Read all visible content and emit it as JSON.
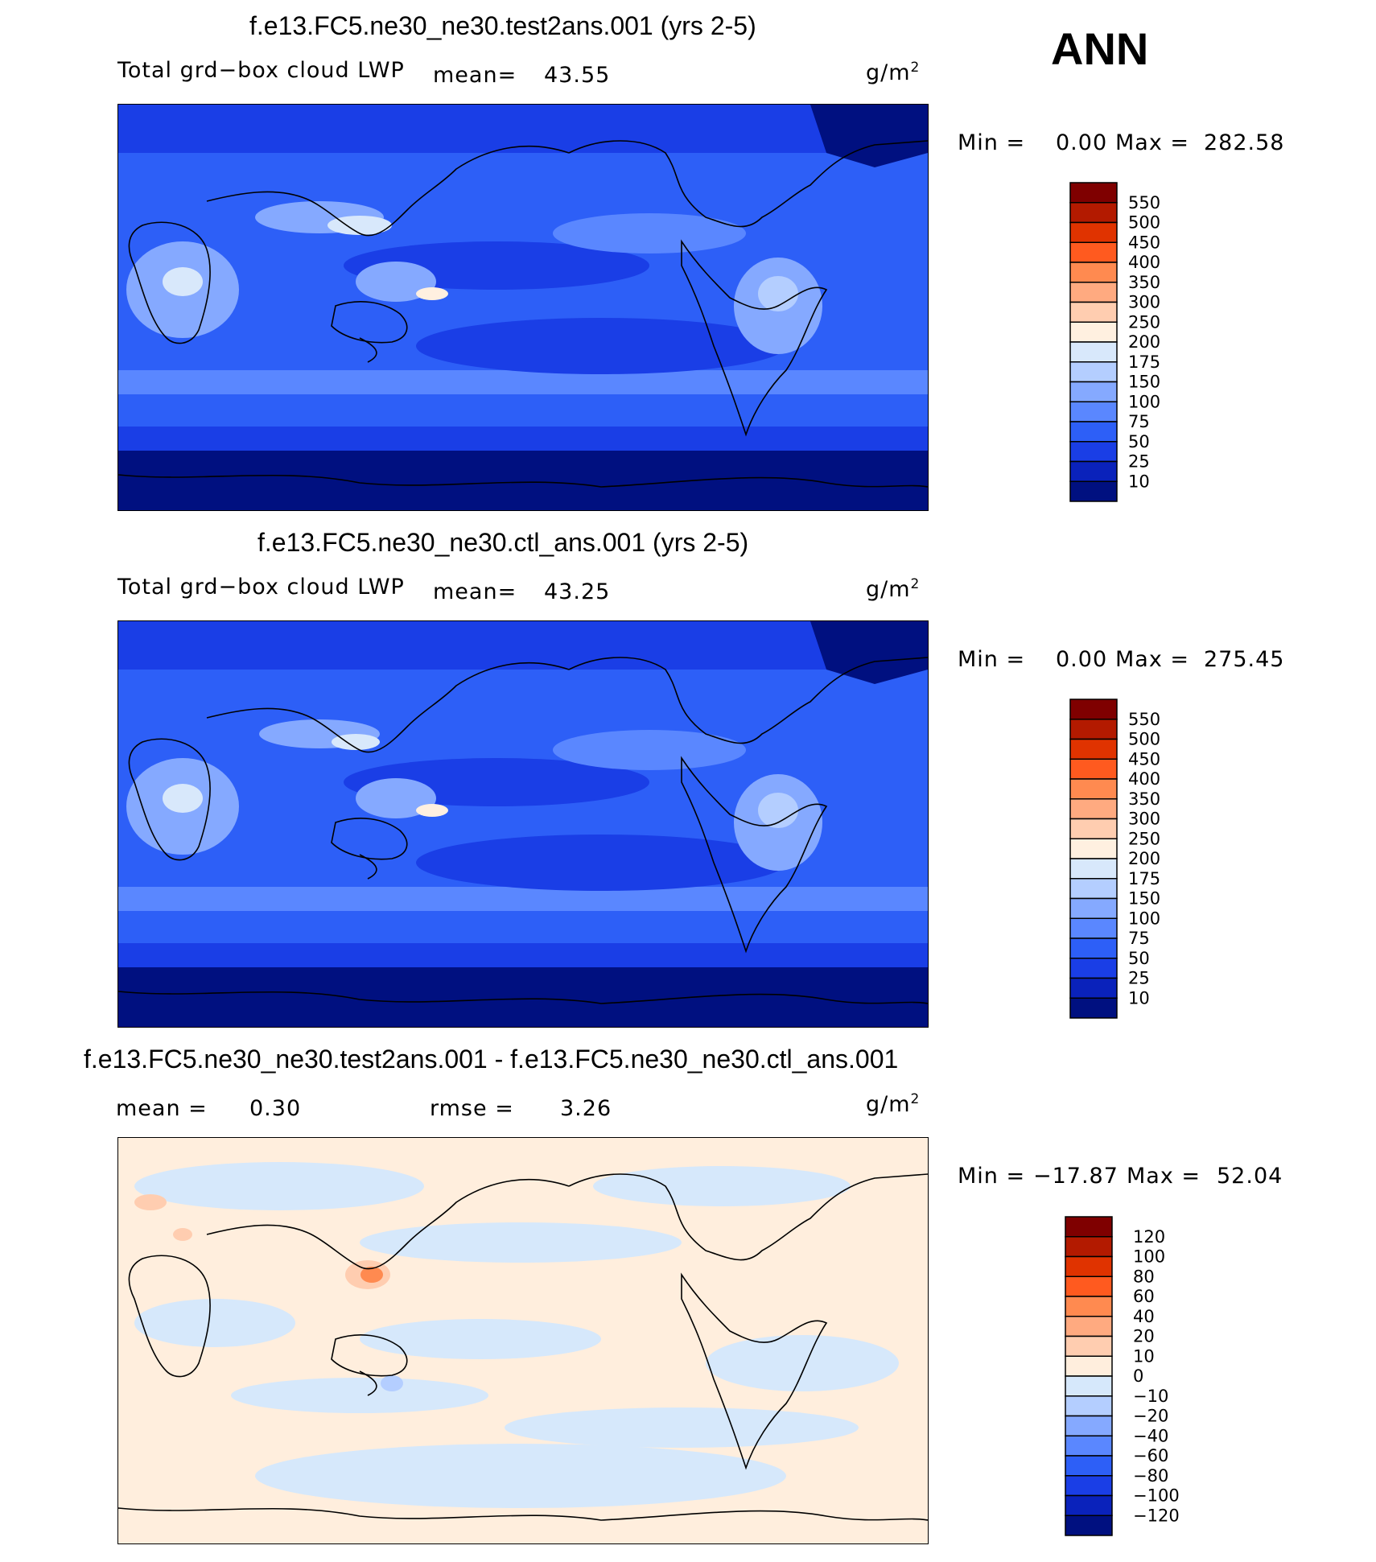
{
  "season": "ANN",
  "panels": [
    {
      "title": "f.e13.FC5.ne30_ne30.test2ans.001 (yrs 2-5)",
      "varname": "Total grd−box cloud LWP",
      "mean_label": "mean=",
      "mean_value": "43.55",
      "units": "g/m",
      "units_sup": "2",
      "min_label": "Min =",
      "min_value": "0.00",
      "max_label": "Max =",
      "max_value": "282.58",
      "colorbar": [
        "550",
        "500",
        "450",
        "400",
        "350",
        "300",
        "250",
        "200",
        "175",
        "150",
        "100",
        "75",
        "50",
        "25",
        "10"
      ],
      "colors": [
        "#7f0000",
        "#b31a00",
        "#e03300",
        "#ff5a1f",
        "#ff8a50",
        "#ffaa80",
        "#ffcdb0",
        "#fff0e0",
        "#d8e8fb",
        "#b4ceff",
        "#85a9ff",
        "#5a87ff",
        "#2d5ff7",
        "#1a3ee6",
        "#0a22bb",
        "#001080"
      ]
    },
    {
      "title": "f.e13.FC5.ne30_ne30.ctl_ans.001 (yrs 2-5)",
      "varname": "Total grd−box cloud LWP",
      "mean_label": "mean=",
      "mean_value": "43.25",
      "units": "g/m",
      "units_sup": "2",
      "min_label": "Min =",
      "min_value": "0.00",
      "max_label": "Max =",
      "max_value": "275.45",
      "colorbar": [
        "550",
        "500",
        "450",
        "400",
        "350",
        "300",
        "250",
        "200",
        "175",
        "150",
        "100",
        "75",
        "50",
        "25",
        "10"
      ],
      "colors": [
        "#7f0000",
        "#b31a00",
        "#e03300",
        "#ff5a1f",
        "#ff8a50",
        "#ffaa80",
        "#ffcdb0",
        "#fff0e0",
        "#d8e8fb",
        "#b4ceff",
        "#85a9ff",
        "#5a87ff",
        "#2d5ff7",
        "#1a3ee6",
        "#0a22bb",
        "#001080"
      ]
    },
    {
      "title": "f.e13.FC5.ne30_ne30.test2ans.001 - f.e13.FC5.ne30_ne30.ctl_ans.001",
      "mean_label": "mean =",
      "mean_value": "0.30",
      "rmse_label": "rmse =",
      "rmse_value": "3.26",
      "units": "g/m",
      "units_sup": "2",
      "min_label": "Min =",
      "min_value": "−17.87",
      "max_label": "Max =",
      "max_value": "52.04",
      "colorbar": [
        "120",
        "100",
        "80",
        "60",
        "40",
        "20",
        "10",
        "0",
        "−10",
        "−20",
        "−40",
        "−60",
        "−80",
        "−100",
        "−120"
      ],
      "colors": [
        "#7f0000",
        "#b31a00",
        "#e03300",
        "#ff5a1f",
        "#ff8a50",
        "#ffaa80",
        "#ffcdb0",
        "#ffeedd",
        "#d6e8fb",
        "#b4ceff",
        "#85a9ff",
        "#5a87ff",
        "#2d5ff7",
        "#1a3ee6",
        "#0a22bb",
        "#001080"
      ]
    }
  ]
}
